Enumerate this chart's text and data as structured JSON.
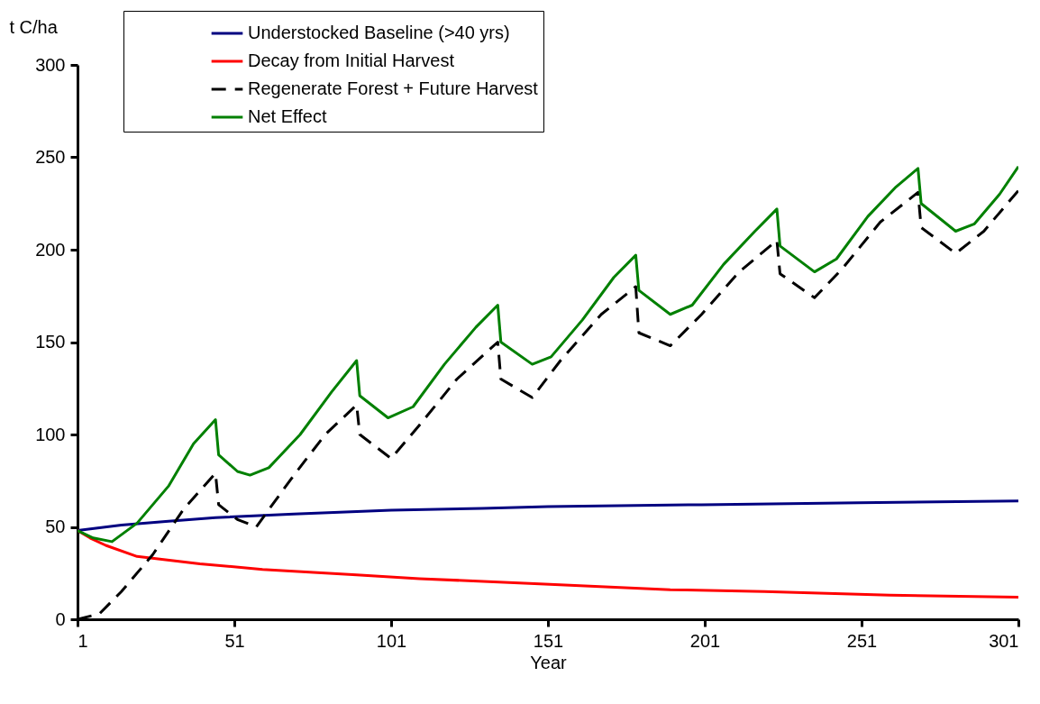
{
  "chart_data": {
    "type": "line",
    "xlabel": "Year",
    "ylabel": "t C/ha",
    "xlim": [
      1,
      301
    ],
    "xticks": [
      1,
      51,
      101,
      151,
      201,
      251,
      301
    ],
    "ylim": [
      0,
      300
    ],
    "yticks": [
      0,
      50,
      100,
      150,
      200,
      250,
      300
    ],
    "grid": false,
    "legend": "top",
    "marker": "none",
    "series": [
      {
        "name": "Understocked Baseline (>40 yrs)",
        "color": "#000080",
        "line_style": "solid",
        "x": [
          1,
          15,
          30,
          45,
          70,
          101,
          130,
          151,
          200,
          250,
          301
        ],
        "values": [
          48,
          51,
          53,
          55,
          57,
          59,
          60,
          61,
          62,
          63,
          64
        ]
      },
      {
        "name": "Decay from Initial Harvest",
        "color": "#ff0000",
        "line_style": "solid",
        "x": [
          1,
          5,
          10,
          20,
          40,
          60,
          90,
          110,
          150,
          190,
          220,
          260,
          301
        ],
        "values": [
          48,
          44,
          40,
          34,
          30,
          27,
          24,
          22,
          19,
          16,
          15,
          13,
          12
        ]
      },
      {
        "name": "Regenerate Forest + Future Harvest",
        "color": "#000000",
        "line_style": "dashed",
        "x": [
          1,
          8,
          15,
          25,
          35,
          45,
          46,
          52,
          58,
          70,
          80,
          90,
          91,
          101,
          110,
          122,
          135,
          136,
          146,
          155,
          168,
          179,
          180,
          190,
          200,
          212,
          224,
          225,
          236,
          245,
          257,
          269,
          270,
          281,
          290,
          301
        ],
        "values": [
          0,
          3,
          15,
          35,
          60,
          79,
          62,
          54,
          50,
          78,
          100,
          116,
          100,
          87,
          105,
          130,
          150,
          130,
          120,
          140,
          165,
          180,
          155,
          148,
          165,
          188,
          205,
          187,
          174,
          190,
          215,
          231,
          212,
          198,
          210,
          232
        ]
      },
      {
        "name": "Net Effect",
        "color": "#008000",
        "line_style": "solid",
        "x": [
          1,
          6,
          12,
          20,
          30,
          38,
          45,
          46,
          52,
          56,
          62,
          72,
          82,
          90,
          91,
          100,
          108,
          118,
          128,
          135,
          136,
          146,
          152,
          162,
          172,
          179,
          180,
          190,
          197,
          207,
          217,
          224,
          225,
          236,
          243,
          253,
          262,
          269,
          270,
          281,
          287,
          295,
          301
        ],
        "values": [
          48,
          44,
          42,
          52,
          72,
          95,
          108,
          89,
          80,
          78,
          82,
          100,
          123,
          140,
          121,
          109,
          115,
          138,
          158,
          170,
          150,
          138,
          142,
          162,
          185,
          197,
          178,
          165,
          170,
          192,
          210,
          222,
          202,
          188,
          195,
          218,
          234,
          244,
          225,
          210,
          214,
          230,
          245
        ]
      }
    ]
  }
}
